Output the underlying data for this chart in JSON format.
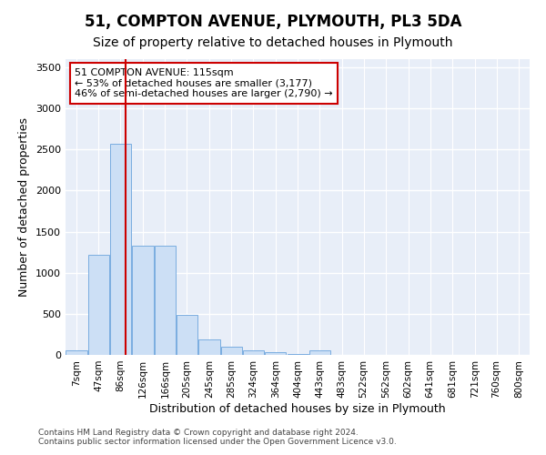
{
  "title": "51, COMPTON AVENUE, PLYMOUTH, PL3 5DA",
  "subtitle": "Size of property relative to detached houses in Plymouth",
  "xlabel": "Distribution of detached houses by size in Plymouth",
  "ylabel": "Number of detached properties",
  "bar_color": "#ccdff5",
  "bar_edge_color": "#7aade0",
  "background_color": "#e8eef8",
  "grid_color": "#ffffff",
  "annotation_line1": "51 COMPTON AVENUE: 115sqm",
  "annotation_line2": "← 53% of detached houses are smaller (3,177)",
  "annotation_line3": "46% of semi-detached houses are larger (2,790) →",
  "annotation_box_color": "#cc0000",
  "vline_x": 115,
  "vline_color": "#cc0000",
  "categories": [
    "7sqm",
    "47sqm",
    "86sqm",
    "126sqm",
    "166sqm",
    "205sqm",
    "245sqm",
    "285sqm",
    "324sqm",
    "364sqm",
    "404sqm",
    "443sqm",
    "483sqm",
    "522sqm",
    "562sqm",
    "602sqm",
    "641sqm",
    "681sqm",
    "721sqm",
    "760sqm",
    "800sqm"
  ],
  "bar_left_edges": [
    7,
    47,
    86,
    126,
    166,
    205,
    245,
    285,
    324,
    364,
    404,
    443,
    483,
    522,
    562,
    602,
    641,
    681,
    721,
    760,
    800
  ],
  "bar_widths": [
    39,
    39,
    39,
    39,
    39,
    39,
    39,
    39,
    39,
    39,
    39,
    39,
    39,
    39,
    39,
    39,
    39,
    39,
    39,
    39,
    39
  ],
  "bar_heights": [
    50,
    1220,
    2570,
    1330,
    1330,
    490,
    185,
    100,
    55,
    30,
    10,
    50,
    0,
    0,
    0,
    0,
    0,
    0,
    0,
    0,
    0
  ],
  "ylim": [
    0,
    3600
  ],
  "yticks": [
    0,
    500,
    1000,
    1500,
    2000,
    2500,
    3000,
    3500
  ],
  "footer_line1": "Contains HM Land Registry data © Crown copyright and database right 2024.",
  "footer_line2": "Contains public sector information licensed under the Open Government Licence v3.0.",
  "fig_width": 6.0,
  "fig_height": 5.0,
  "dpi": 100
}
